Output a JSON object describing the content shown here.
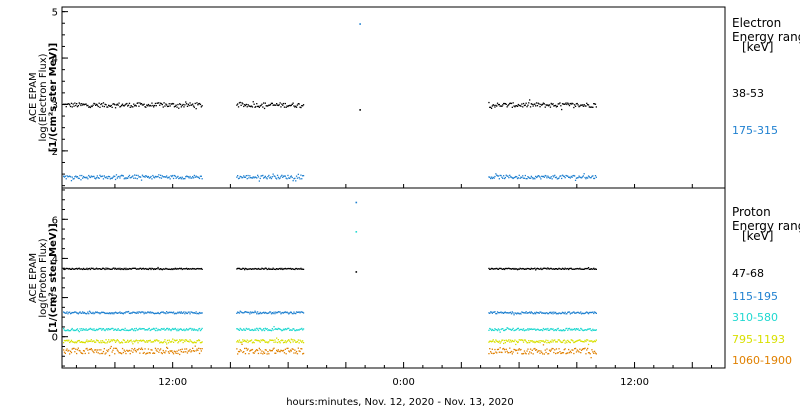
{
  "chart_data": {
    "type": "scatter",
    "xlabel": "hours:minutes, Nov. 12, 2020 - Nov. 13, 2020",
    "x_ticks": [
      "12:00",
      "0:00",
      "12:00"
    ],
    "x_tick_hours": [
      12,
      24,
      36
    ],
    "xlim_hours": [
      6.25,
      40.7
    ],
    "data_segments_hours": [
      [
        6.3,
        13.5
      ],
      [
        15.3,
        18.8
      ],
      [
        28.4,
        34.0
      ]
    ],
    "panels": [
      {
        "id": "electron",
        "ylabel_lines": [
          "ACE EPAM",
          "log(Electron Flux)",
          "[1/(cm²s ster MeV)]"
        ],
        "ylim": [
          1.2,
          5.1
        ],
        "y_ticks": [
          2,
          3,
          4,
          5
        ],
        "legend_title_lines": [
          "Electron",
          "Energy range",
          "[keV]"
        ],
        "series": [
          {
            "name": "38-53",
            "color": "#000000",
            "level": 3.0,
            "spread": 0.05
          },
          {
            "name": "175-315",
            "color": "#1f80d0",
            "level": 1.45,
            "spread": 0.04
          }
        ],
        "outliers": [
          {
            "x_hours": 21.7,
            "y": 4.75,
            "color": "#1f80d0"
          },
          {
            "x_hours": 21.7,
            "y": 2.9,
            "color": "#000000"
          }
        ]
      },
      {
        "id": "proton",
        "ylabel_lines": [
          "ACE EPAM",
          "log(Proton Flux)",
          "[1/(cm²s ster MeV)]"
        ],
        "ylim": [
          -1.6,
          7.6
        ],
        "y_ticks": [
          0,
          2,
          4,
          6
        ],
        "legend_title_lines": [
          "Proton",
          "Energy range",
          "[keV]"
        ],
        "series": [
          {
            "name": "47-68",
            "color": "#000000",
            "level": 3.5,
            "spread": 0.03
          },
          {
            "name": "115-195",
            "color": "#1f80d0",
            "level": 1.25,
            "spread": 0.05
          },
          {
            "name": "310-580",
            "color": "#20d8d0",
            "level": 0.4,
            "spread": 0.06
          },
          {
            "name": "795-1193",
            "color": "#d8e000",
            "level": -0.2,
            "spread": 0.08
          },
          {
            "name": "1060-1900",
            "color": "#e08000",
            "level": -0.7,
            "spread": 0.15
          }
        ],
        "outliers": [
          {
            "x_hours": 21.5,
            "y": 6.9,
            "color": "#1f80d0"
          },
          {
            "x_hours": 21.5,
            "y": 5.4,
            "color": "#20d8d0"
          },
          {
            "x_hours": 21.5,
            "y": 3.35,
            "color": "#000000"
          }
        ]
      }
    ]
  }
}
